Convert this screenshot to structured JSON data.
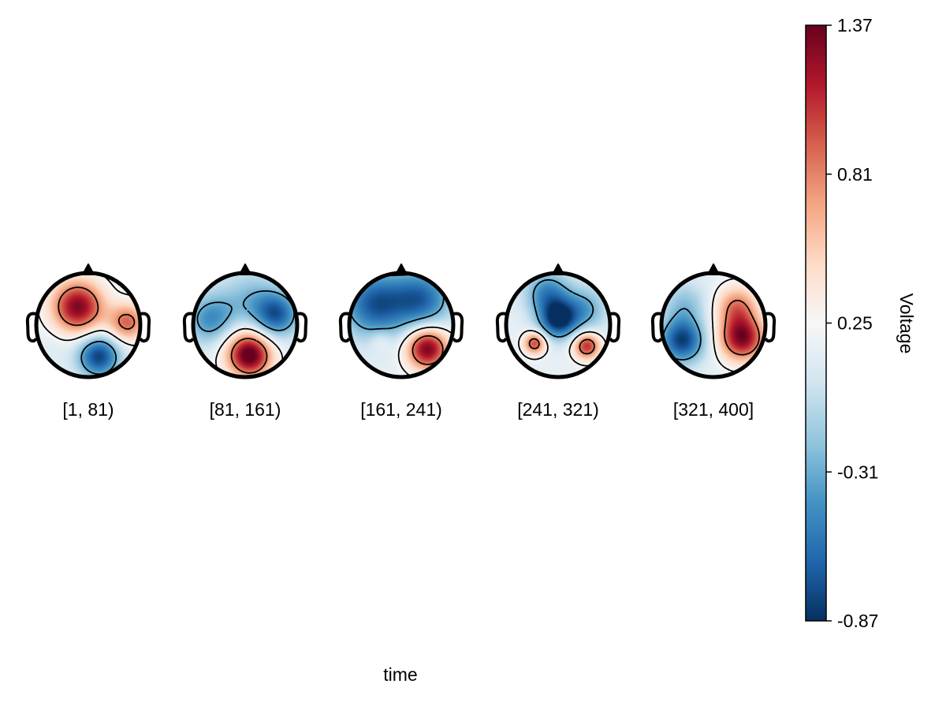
{
  "chart_data": {
    "type": "heatmap",
    "subtype": "eeg-topoplot-series",
    "xlabel": "time",
    "colorbar": {
      "label": "Voltage",
      "colormap": "RdBu (reversed)",
      "range": [
        -0.87,
        1.37
      ],
      "ticks": [
        -0.87,
        -0.31,
        0.25,
        0.81,
        1.37
      ],
      "tick_labels": [
        "-0.87",
        "-0.31",
        "0.25",
        "0.81",
        "1.37"
      ]
    },
    "panels": [
      {
        "label": "[1, 81)",
        "sources": [
          {
            "x": -0.2,
            "y": -0.35,
            "v": 1.3,
            "s": 0.35
          },
          {
            "x": 0.75,
            "y": -0.05,
            "v": 0.9,
            "s": 0.25
          },
          {
            "x": 0.2,
            "y": 0.6,
            "v": -0.8,
            "s": 0.28
          },
          {
            "x": -0.7,
            "y": 0.45,
            "v": 0.1,
            "s": 0.3
          }
        ]
      },
      {
        "label": "[81, 161)",
        "sources": [
          {
            "x": 0.1,
            "y": 0.6,
            "v": 1.2,
            "s": 0.28
          },
          {
            "x": -0.05,
            "y": 0.4,
            "v": 0.5,
            "s": 0.35
          },
          {
            "x": 0.6,
            "y": -0.2,
            "v": -0.65,
            "s": 0.3
          },
          {
            "x": -0.65,
            "y": -0.1,
            "v": -0.45,
            "s": 0.35
          },
          {
            "x": 0.1,
            "y": -0.5,
            "v": -0.2,
            "s": 0.4
          }
        ]
      },
      {
        "label": "[161, 241)",
        "sources": [
          {
            "x": 0.5,
            "y": 0.45,
            "v": 1.35,
            "s": 0.28
          },
          {
            "x": -0.4,
            "y": 0.3,
            "v": 0.35,
            "s": 0.15
          },
          {
            "x": -0.5,
            "y": -0.4,
            "v": -0.7,
            "s": 0.45
          },
          {
            "x": 0.4,
            "y": -0.5,
            "v": -0.6,
            "s": 0.4
          }
        ]
      },
      {
        "label": "[241, 321)",
        "sources": [
          {
            "x": 0.0,
            "y": -0.1,
            "v": -0.85,
            "s": 0.25
          },
          {
            "x": -0.45,
            "y": 0.35,
            "v": 1.0,
            "s": 0.15
          },
          {
            "x": 0.55,
            "y": 0.4,
            "v": 1.1,
            "s": 0.18
          },
          {
            "x": -0.2,
            "y": -0.6,
            "v": -0.5,
            "s": 0.3
          },
          {
            "x": 0.5,
            "y": -0.3,
            "v": -0.35,
            "s": 0.3
          }
        ]
      },
      {
        "label": "[321, 400]",
        "sources": [
          {
            "x": 0.55,
            "y": 0.25,
            "v": 1.3,
            "s": 0.3
          },
          {
            "x": 0.45,
            "y": -0.35,
            "v": 0.8,
            "s": 0.28
          },
          {
            "x": -0.6,
            "y": 0.3,
            "v": -0.8,
            "s": 0.3
          },
          {
            "x": -0.55,
            "y": -0.4,
            "v": -0.2,
            "s": 0.3
          }
        ]
      }
    ]
  }
}
